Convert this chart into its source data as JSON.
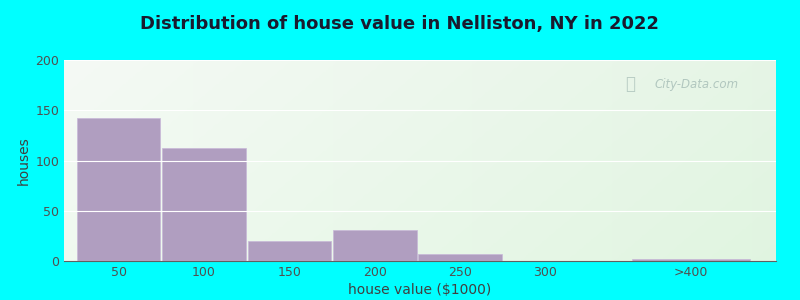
{
  "title": "Distribution of house value in Nelliston, NY in 2022",
  "xlabel": "house value ($1000)",
  "ylabel": "houses",
  "bar_labels": [
    "50",
    "100",
    "150",
    "200",
    "250",
    "300",
    ">400"
  ],
  "bar_values": [
    142,
    112,
    20,
    31,
    7,
    0,
    2
  ],
  "bar_color": "#b09ec0",
  "bar_edgecolor": "#c8b8d8",
  "ylim": [
    0,
    200
  ],
  "yticks": [
    0,
    50,
    100,
    150,
    200
  ],
  "background_outer": "#00ffff",
  "background_inner": "#e8f5ea",
  "grid_color": "#ffffff",
  "title_fontsize": 13,
  "axis_label_fontsize": 10,
  "tick_fontsize": 9,
  "watermark_text": "City-Data.com",
  "watermark_color": "#a8bfb8",
  "bar_edges_left": [
    25,
    75,
    125,
    175,
    225,
    275,
    350
  ],
  "bar_edges_right": [
    75,
    125,
    175,
    225,
    275,
    325,
    420
  ],
  "xtick_positions": [
    50,
    100,
    150,
    200,
    250,
    300,
    385
  ],
  "xlim": [
    18,
    435
  ]
}
